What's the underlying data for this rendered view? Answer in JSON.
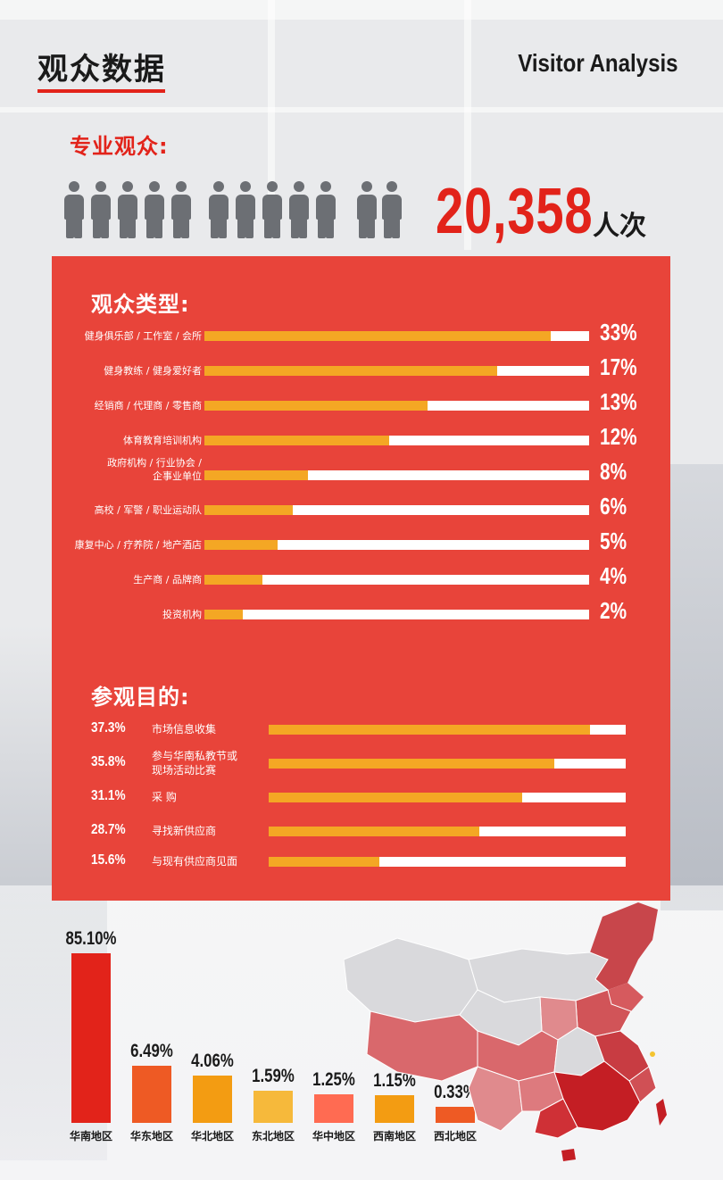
{
  "header": {
    "title_cn": "观众数据",
    "title_en": "Visitor Analysis"
  },
  "professional": {
    "label": "专业观众:",
    "count": "20,358",
    "unit": "人次",
    "icon": "person-icon"
  },
  "colors": {
    "brand_red": "#e2231a",
    "panel_red": "#e8443a",
    "bar_fill": "#f4a724",
    "track": "#ffffff",
    "icon_gray": "#6c6f74"
  },
  "chart_data": [
    {
      "type": "bar",
      "title": "观众类型:",
      "orientation": "horizontal",
      "categories": [
        "健身俱乐部 / 工作室 / 会所",
        "健身教练 / 健身爱好者",
        "经销商 / 代理商 / 零售商",
        "体育教育培训机构",
        "政府机构 / 行业协会 / 企事业单位",
        "高校 / 军警 / 职业运动队",
        "康复中心 / 疗养院 / 地产酒店",
        "生产商 / 品牌商",
        "投资机构"
      ],
      "values": [
        33,
        17,
        13,
        12,
        8,
        6,
        5,
        4,
        2
      ],
      "value_labels": [
        "33%",
        "17%",
        "13%",
        "12%",
        "8%",
        "6%",
        "5%",
        "4%",
        "2%"
      ],
      "fill_fraction": [
        0.9,
        0.76,
        0.58,
        0.48,
        0.27,
        0.23,
        0.19,
        0.15,
        0.1
      ]
    },
    {
      "type": "bar",
      "title": "参观目的:",
      "orientation": "horizontal",
      "categories": [
        "市场信息收集",
        "参与华南私教节或现场活动比赛",
        "采 购",
        "寻找新供应商",
        "与现有供应商见面"
      ],
      "values": [
        37.3,
        35.8,
        31.1,
        28.7,
        15.6
      ],
      "value_labels": [
        "37.3%",
        "35.8%",
        "31.1%",
        "28.7%",
        "15.6%"
      ],
      "fill_fraction": [
        0.9,
        0.8,
        0.71,
        0.59,
        0.31
      ]
    },
    {
      "type": "bar",
      "title": "",
      "orientation": "vertical",
      "categories": [
        "华南地区",
        "华东地区",
        "华北地区",
        "东北地区",
        "华中地区",
        "西南地区",
        "西北地区"
      ],
      "values": [
        85.1,
        6.49,
        4.06,
        1.59,
        1.25,
        1.15,
        0.33
      ],
      "value_labels": [
        "85.10%",
        "6.49%",
        "4.06%",
        "1.59%",
        "1.25%",
        "1.15%",
        "0.33%"
      ],
      "bar_colors": [
        "#e2231a",
        "#ee5a24",
        "#f39c12",
        "#f6b93b",
        "#ff6b52",
        "#f39c12",
        "#ee5a24"
      ]
    }
  ],
  "type_label_lines": [
    [
      "健身俱乐部 / 工作室 / 会所"
    ],
    [
      "健身教练 / 健身爱好者"
    ],
    [
      "经销商 / 代理商 / 零售商"
    ],
    [
      "体育教育培训机构"
    ],
    [
      "政府机构 / 行业协会 /",
      "企事业单位"
    ],
    [
      "高校 / 军警 / 职业运动队"
    ],
    [
      "康复中心 / 疗养院 / 地产酒店"
    ],
    [
      "生产商 / 品牌商"
    ],
    [
      "投资机构"
    ]
  ],
  "purpose_label_lines": [
    [
      "市场信息收集"
    ],
    [
      "参与华南私教节或",
      "现场活动比赛"
    ],
    [
      "采 购"
    ],
    [
      "寻找新供应商"
    ],
    [
      "与现有供应商见面"
    ]
  ],
  "map": {
    "icon": "china-map-icon"
  }
}
